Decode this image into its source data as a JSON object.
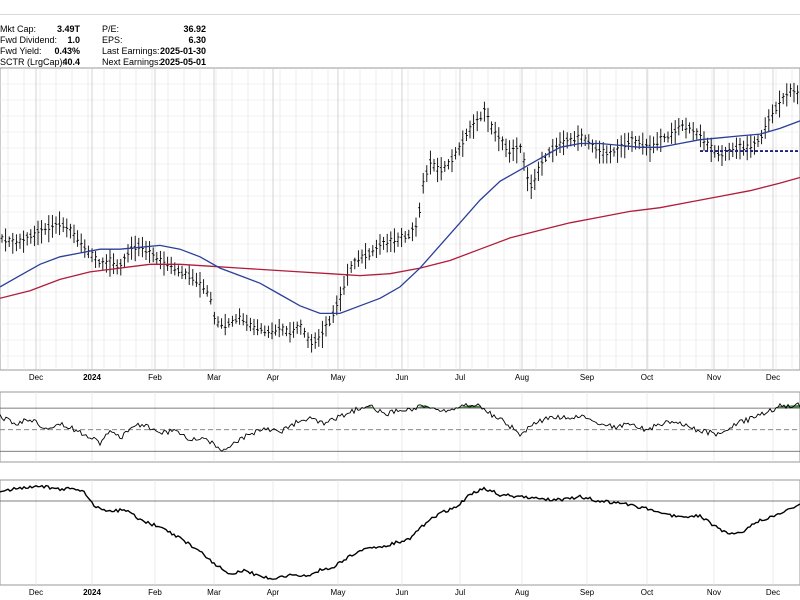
{
  "stats": [
    {
      "label": "Mkt Cap:",
      "value": "3.49T"
    },
    {
      "label": "Fwd Dividend:",
      "value": "1.0"
    },
    {
      "label": "Fwd Yield:",
      "value": "0.43%"
    },
    {
      "label": "SCTR (LrgCap):",
      "value": "40.4"
    },
    {
      "label": "P/E:",
      "value": "36.92"
    },
    {
      "label": "EPS:",
      "value": "6.30"
    },
    {
      "label": "Last Earnings:",
      "value": "2025-01-30"
    },
    {
      "label": "Next Earnings:",
      "value": "2025-05-01"
    }
  ],
  "colors": {
    "price_bars": "#000000",
    "ma_short": "#2a3f99",
    "ma_long": "#b01d3a",
    "support_line": "#1a237e",
    "overbought_fill": "#3d7a3a",
    "oversold_fill": "#a3342c",
    "indicator_line": "#000000",
    "grid": "#e3e3e3"
  },
  "chart_data": [
    {
      "type": "ohlc",
      "panel": "price",
      "x_ticks": [
        "Dec",
        "2024",
        "Feb",
        "Mar",
        "Apr",
        "May",
        "Jun",
        "Jul",
        "Aug",
        "Sep",
        "Oct",
        "Nov",
        "Dec"
      ],
      "bold_ticks": [
        "2024"
      ],
      "grid": true,
      "price_path": [
        [
          0,
          80
        ],
        [
          10,
          79
        ],
        [
          20,
          79
        ],
        [
          35,
          81
        ],
        [
          50,
          83
        ],
        [
          60,
          84
        ],
        [
          70,
          82
        ],
        [
          80,
          79
        ],
        [
          90,
          76
        ],
        [
          100,
          73
        ],
        [
          110,
          74
        ],
        [
          120,
          72
        ],
        [
          130,
          77
        ],
        [
          140,
          78
        ],
        [
          150,
          76
        ],
        [
          160,
          74
        ],
        [
          170,
          73
        ],
        [
          180,
          71
        ],
        [
          190,
          70
        ],
        [
          200,
          68
        ],
        [
          210,
          65
        ],
        [
          215,
          58
        ],
        [
          225,
          57
        ],
        [
          240,
          59
        ],
        [
          250,
          57
        ],
        [
          260,
          56
        ],
        [
          270,
          55
        ],
        [
          280,
          56
        ],
        [
          290,
          55
        ],
        [
          300,
          57
        ],
        [
          310,
          52
        ],
        [
          320,
          54
        ],
        [
          330,
          58
        ],
        [
          340,
          64
        ],
        [
          350,
          72
        ],
        [
          360,
          75
        ],
        [
          370,
          76
        ],
        [
          380,
          78
        ],
        [
          390,
          79
        ],
        [
          400,
          80
        ],
        [
          410,
          81
        ],
        [
          418,
          84
        ],
        [
          423,
          94
        ],
        [
          430,
          100
        ],
        [
          440,
          98
        ],
        [
          450,
          100
        ],
        [
          460,
          104
        ],
        [
          470,
          109
        ],
        [
          478,
          111
        ],
        [
          485,
          114
        ],
        [
          490,
          110
        ],
        [
          500,
          106
        ],
        [
          510,
          103
        ],
        [
          520,
          104
        ],
        [
          525,
          99
        ],
        [
          530,
          93
        ],
        [
          540,
          99
        ],
        [
          550,
          103
        ],
        [
          560,
          105
        ],
        [
          570,
          106
        ],
        [
          580,
          107
        ],
        [
          590,
          105
        ],
        [
          600,
          103
        ],
        [
          610,
          102
        ],
        [
          620,
          104
        ],
        [
          630,
          106
        ],
        [
          640,
          105
        ],
        [
          650,
          104
        ],
        [
          660,
          106
        ],
        [
          670,
          107
        ],
        [
          680,
          110
        ],
        [
          690,
          109
        ],
        [
          700,
          107
        ],
        [
          710,
          104
        ],
        [
          720,
          102
        ],
        [
          730,
          103
        ],
        [
          740,
          104
        ],
        [
          750,
          104
        ],
        [
          760,
          106
        ],
        [
          770,
          112
        ],
        [
          780,
          116
        ],
        [
          790,
          119
        ],
        [
          800,
          118
        ]
      ],
      "ma_short": [
        [
          0,
          67
        ],
        [
          20,
          70
        ],
        [
          40,
          73
        ],
        [
          60,
          75
        ],
        [
          80,
          76
        ],
        [
          100,
          77
        ],
        [
          120,
          77
        ],
        [
          140,
          77.5
        ],
        [
          160,
          78
        ],
        [
          180,
          77
        ],
        [
          200,
          75
        ],
        [
          220,
          72
        ],
        [
          240,
          70
        ],
        [
          260,
          68
        ],
        [
          280,
          65
        ],
        [
          300,
          62
        ],
        [
          320,
          60
        ],
        [
          340,
          60
        ],
        [
          360,
          62
        ],
        [
          380,
          64
        ],
        [
          400,
          67
        ],
        [
          420,
          72
        ],
        [
          440,
          78
        ],
        [
          460,
          84
        ],
        [
          480,
          90
        ],
        [
          500,
          95
        ],
        [
          520,
          98
        ],
        [
          540,
          101
        ],
        [
          560,
          104
        ],
        [
          580,
          105
        ],
        [
          600,
          105
        ],
        [
          620,
          104.5
        ],
        [
          640,
          104
        ],
        [
          660,
          104
        ],
        [
          680,
          105
        ],
        [
          700,
          106
        ],
        [
          720,
          106.5
        ],
        [
          740,
          107
        ],
        [
          760,
          107.5
        ],
        [
          780,
          109
        ],
        [
          800,
          111
        ]
      ],
      "ma_long": [
        [
          0,
          64
        ],
        [
          30,
          66
        ],
        [
          60,
          69
        ],
        [
          90,
          71
        ],
        [
          120,
          72
        ],
        [
          150,
          73
        ],
        [
          180,
          73
        ],
        [
          210,
          72.5
        ],
        [
          240,
          72
        ],
        [
          270,
          71.5
        ],
        [
          300,
          71
        ],
        [
          330,
          70.5
        ],
        [
          360,
          70
        ],
        [
          390,
          70.5
        ],
        [
          420,
          72
        ],
        [
          450,
          74
        ],
        [
          480,
          77
        ],
        [
          510,
          80
        ],
        [
          540,
          82
        ],
        [
          570,
          84
        ],
        [
          600,
          85.5
        ],
        [
          630,
          87
        ],
        [
          660,
          88
        ],
        [
          690,
          89.5
        ],
        [
          720,
          91
        ],
        [
          750,
          92.5
        ],
        [
          780,
          94.5
        ],
        [
          800,
          96
        ]
      ],
      "support_level": 103,
      "y_range": [
        45,
        125
      ]
    },
    {
      "type": "line",
      "panel": "oscillator",
      "name": "",
      "levels": {
        "upper": 70,
        "mid": 50,
        "lower": 30
      },
      "y_range": [
        20,
        85
      ],
      "values_path": [
        [
          0,
          62
        ],
        [
          15,
          55
        ],
        [
          30,
          60
        ],
        [
          45,
          52
        ],
        [
          60,
          56
        ],
        [
          75,
          50
        ],
        [
          90,
          44
        ],
        [
          100,
          38
        ],
        [
          110,
          48
        ],
        [
          120,
          42
        ],
        [
          130,
          52
        ],
        [
          145,
          55
        ],
        [
          160,
          46
        ],
        [
          175,
          50
        ],
        [
          190,
          40
        ],
        [
          205,
          43
        ],
        [
          215,
          35
        ],
        [
          225,
          29
        ],
        [
          235,
          38
        ],
        [
          250,
          46
        ],
        [
          265,
          52
        ],
        [
          280,
          48
        ],
        [
          295,
          56
        ],
        [
          310,
          60
        ],
        [
          325,
          55
        ],
        [
          340,
          62
        ],
        [
          355,
          68
        ],
        [
          370,
          72
        ],
        [
          385,
          64
        ],
        [
          400,
          68
        ],
        [
          415,
          70
        ],
        [
          425,
          73
        ],
        [
          440,
          66
        ],
        [
          455,
          70
        ],
        [
          470,
          73
        ],
        [
          480,
          72
        ],
        [
          490,
          65
        ],
        [
          505,
          57
        ],
        [
          520,
          46
        ],
        [
          530,
          52
        ],
        [
          540,
          58
        ],
        [
          555,
          62
        ],
        [
          570,
          60
        ],
        [
          585,
          62
        ],
        [
          600,
          56
        ],
        [
          615,
          52
        ],
        [
          630,
          56
        ],
        [
          645,
          50
        ],
        [
          660,
          55
        ],
        [
          675,
          58
        ],
        [
          690,
          52
        ],
        [
          705,
          48
        ],
        [
          720,
          46
        ],
        [
          735,
          55
        ],
        [
          750,
          60
        ],
        [
          765,
          66
        ],
        [
          780,
          72
        ],
        [
          800,
          73
        ]
      ]
    },
    {
      "type": "line",
      "panel": "relative",
      "name": "",
      "x_ticks": [
        "Dec",
        "2024",
        "Feb",
        "Mar",
        "Apr",
        "May",
        "Jun",
        "Jul",
        "Aug",
        "Sep",
        "Oct",
        "Nov",
        "Dec"
      ],
      "bold_ticks": [
        "2024"
      ],
      "y_range": [
        0,
        100
      ],
      "reference_level": 80,
      "values_path": [
        [
          0,
          90
        ],
        [
          20,
          92
        ],
        [
          40,
          95
        ],
        [
          55,
          91
        ],
        [
          70,
          92
        ],
        [
          85,
          88
        ],
        [
          95,
          74
        ],
        [
          110,
          70
        ],
        [
          125,
          72
        ],
        [
          140,
          62
        ],
        [
          160,
          55
        ],
        [
          180,
          45
        ],
        [
          200,
          32
        ],
        [
          215,
          20
        ],
        [
          230,
          10
        ],
        [
          245,
          14
        ],
        [
          260,
          8
        ],
        [
          275,
          6
        ],
        [
          290,
          10
        ],
        [
          305,
          8
        ],
        [
          320,
          14
        ],
        [
          335,
          18
        ],
        [
          350,
          28
        ],
        [
          365,
          34
        ],
        [
          380,
          36
        ],
        [
          395,
          40
        ],
        [
          410,
          44
        ],
        [
          420,
          54
        ],
        [
          430,
          62
        ],
        [
          440,
          68
        ],
        [
          455,
          74
        ],
        [
          470,
          86
        ],
        [
          485,
          92
        ],
        [
          500,
          86
        ],
        [
          520,
          84
        ],
        [
          540,
          82
        ],
        [
          560,
          81
        ],
        [
          580,
          84
        ],
        [
          600,
          80
        ],
        [
          620,
          78
        ],
        [
          640,
          74
        ],
        [
          660,
          70
        ],
        [
          680,
          64
        ],
        [
          700,
          66
        ],
        [
          715,
          56
        ],
        [
          730,
          48
        ],
        [
          745,
          52
        ],
        [
          760,
          62
        ],
        [
          775,
          66
        ],
        [
          790,
          72
        ],
        [
          800,
          76
        ]
      ]
    }
  ]
}
